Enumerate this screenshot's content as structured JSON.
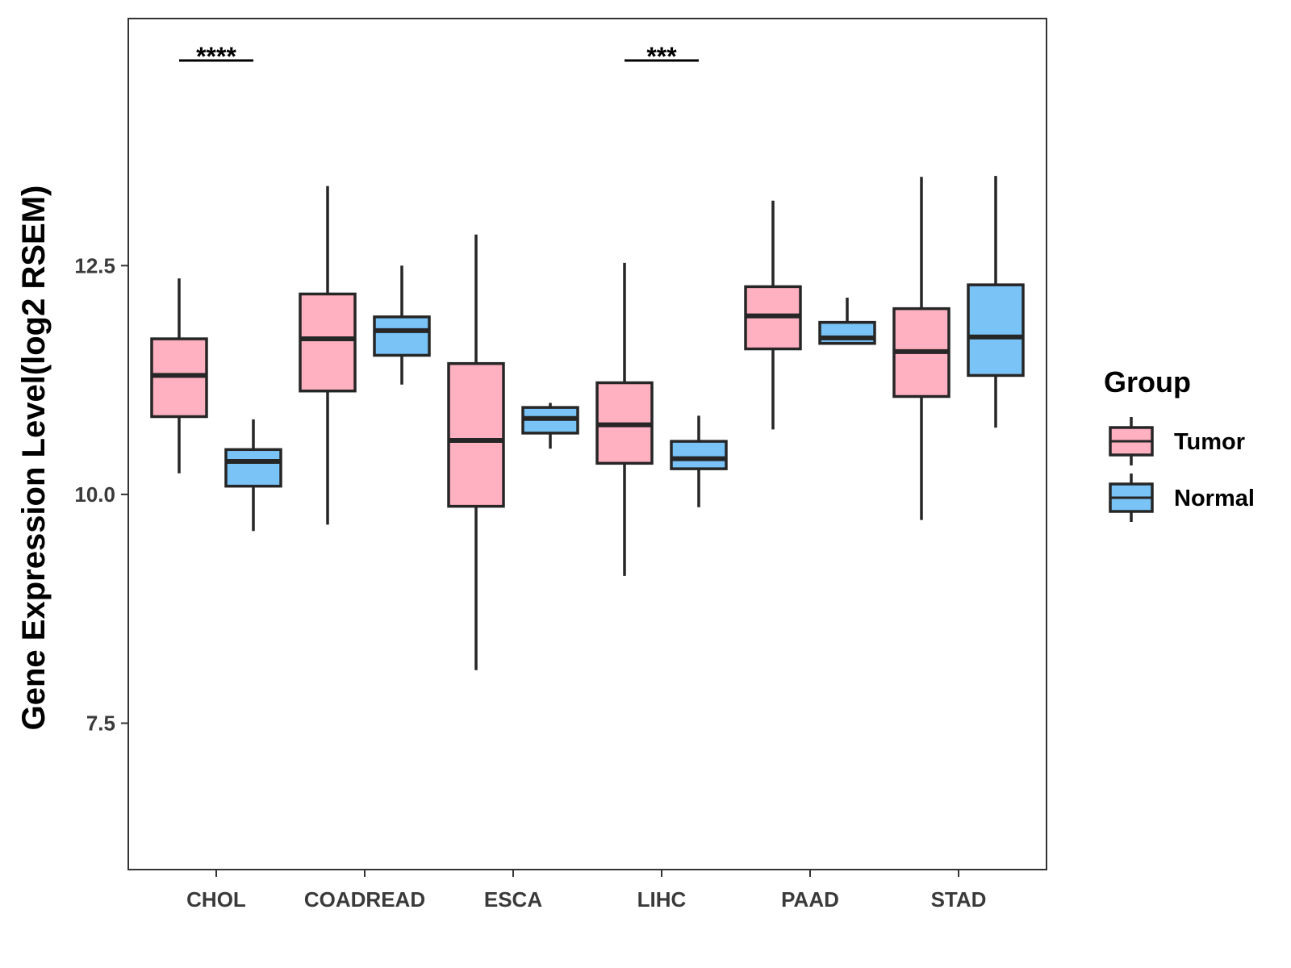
{
  "chart_data": {
    "type": "boxplot",
    "title": "",
    "xlabel": "",
    "ylabel": "Gene Expression Level(log2 RSEM)",
    "ylim": [
      5.9,
      15.2
    ],
    "yticks": [
      7.5,
      10.0,
      12.5
    ],
    "ytick_labels": [
      "7.5",
      "10.0",
      "12.5"
    ],
    "categories": [
      "CHOL",
      "COADREAD",
      "ESCA",
      "LIHC",
      "PAAD",
      "STAD"
    ],
    "legend": {
      "title": "Group",
      "position": "right",
      "entries": [
        "Tumor",
        "Normal"
      ]
    },
    "series": [
      {
        "name": "Tumor",
        "color": "#FFB0C1",
        "boxes": [
          {
            "category": "CHOL",
            "min": 10.23,
            "q1": 10.85,
            "median": 11.3,
            "q3": 11.7,
            "max": 12.36
          },
          {
            "category": "COADREAD",
            "min": 9.67,
            "q1": 11.13,
            "median": 11.7,
            "q3": 12.19,
            "max": 13.37
          },
          {
            "category": "ESCA",
            "min": 8.08,
            "q1": 9.87,
            "median": 10.59,
            "q3": 11.43,
            "max": 12.84
          },
          {
            "category": "LIHC",
            "min": 9.11,
            "q1": 10.34,
            "median": 10.76,
            "q3": 11.22,
            "max": 12.53
          },
          {
            "category": "PAAD",
            "min": 10.71,
            "q1": 11.59,
            "median": 11.95,
            "q3": 12.27,
            "max": 13.21
          },
          {
            "category": "STAD",
            "min": 9.72,
            "q1": 11.07,
            "median": 11.56,
            "q3": 12.03,
            "max": 13.47
          }
        ]
      },
      {
        "name": "Normal",
        "color": "#7AC3F7",
        "boxes": [
          {
            "category": "CHOL",
            "min": 9.6,
            "q1": 10.09,
            "median": 10.36,
            "q3": 10.49,
            "max": 10.82
          },
          {
            "category": "COADREAD",
            "min": 11.2,
            "q1": 11.52,
            "median": 11.79,
            "q3": 11.94,
            "max": 12.5
          },
          {
            "category": "ESCA",
            "min": 10.5,
            "q1": 10.67,
            "median": 10.83,
            "q3": 10.95,
            "max": 11.0
          },
          {
            "category": "LIHC",
            "min": 9.86,
            "q1": 10.28,
            "median": 10.39,
            "q3": 10.58,
            "max": 10.86
          },
          {
            "category": "PAAD",
            "min": 11.65,
            "q1": 11.65,
            "median": 11.71,
            "q3": 11.88,
            "max": 12.15
          },
          {
            "category": "STAD",
            "min": 10.73,
            "q1": 11.3,
            "median": 11.72,
            "q3": 12.29,
            "max": 13.48
          }
        ]
      }
    ],
    "annotations": [
      {
        "category": "CHOL",
        "label": "****"
      },
      {
        "category": "LIHC",
        "label": "***"
      }
    ],
    "colors": {
      "tumor": "#FFB0C1",
      "normal": "#7AC3F7",
      "outline": "#262626",
      "axis": "#333333"
    }
  }
}
